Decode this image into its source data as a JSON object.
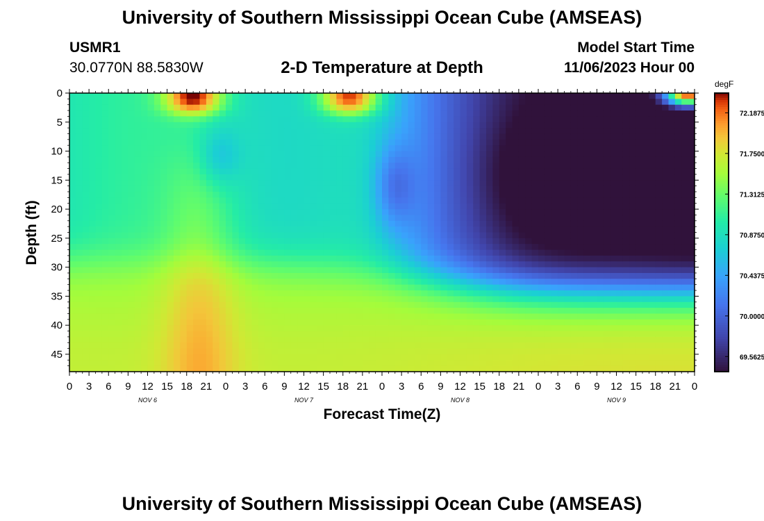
{
  "title": "University of Southern Mississippi Ocean Cube (AMSEAS)",
  "title_repeat": "University of Southern Mississippi Ocean Cube (AMSEAS)",
  "station": {
    "id": "USMR1",
    "coords": "30.0770N  88.5830W"
  },
  "model_start": {
    "label": "Model Start Time",
    "value": "11/06/2023 Hour 00"
  },
  "chart_data": {
    "type": "heatmap",
    "title": "2-D Temperature at Depth",
    "xlabel": "Forecast Time(Z)",
    "ylabel": "Depth (ft)",
    "x_tick_labels": [
      "0",
      "3",
      "6",
      "9",
      "12",
      "15",
      "18",
      "21",
      "0",
      "3",
      "6",
      "9",
      "12",
      "15",
      "18",
      "21",
      "0",
      "3",
      "6",
      "9",
      "12",
      "15",
      "18",
      "21",
      "0",
      "3",
      "6",
      "9",
      "12",
      "15",
      "18",
      "21",
      "0"
    ],
    "x_date_labels": [
      "NOV 6",
      "NOV 7",
      "NOV 8",
      "NOV 9"
    ],
    "x_range_hours": [
      0,
      96
    ],
    "y_ticks": [
      0,
      5,
      10,
      15,
      20,
      25,
      30,
      35,
      40,
      45
    ],
    "y_range": [
      0,
      48
    ],
    "colorbar": {
      "unit": "degF",
      "tick_labels": [
        "72.1875",
        "71.7500",
        "71.3125",
        "70.8750",
        "70.4375",
        "70.0000",
        "69.5625"
      ],
      "tick_values": [
        72.1875,
        71.75,
        71.3125,
        70.875,
        70.4375,
        70.0,
        69.5625
      ],
      "range": [
        69.4,
        72.4
      ]
    },
    "grid": false,
    "approx_field": {
      "description_units": "time in hours from start, depth in ft, value in degF",
      "deep_warm_layer": {
        "depth_top_start": 30,
        "depth_top_end": 35,
        "value": 71.6
      },
      "surface_warm_events_hours": [
        17,
        41,
        93
      ],
      "cold_pool": {
        "hours": [
          62,
          96
        ],
        "depth": [
          0,
          30
        ],
        "value": 69.5
      },
      "cool_tongue": {
        "hours": [
          44,
          56
        ],
        "depth": [
          8,
          22
        ],
        "value": 70.1
      }
    }
  }
}
